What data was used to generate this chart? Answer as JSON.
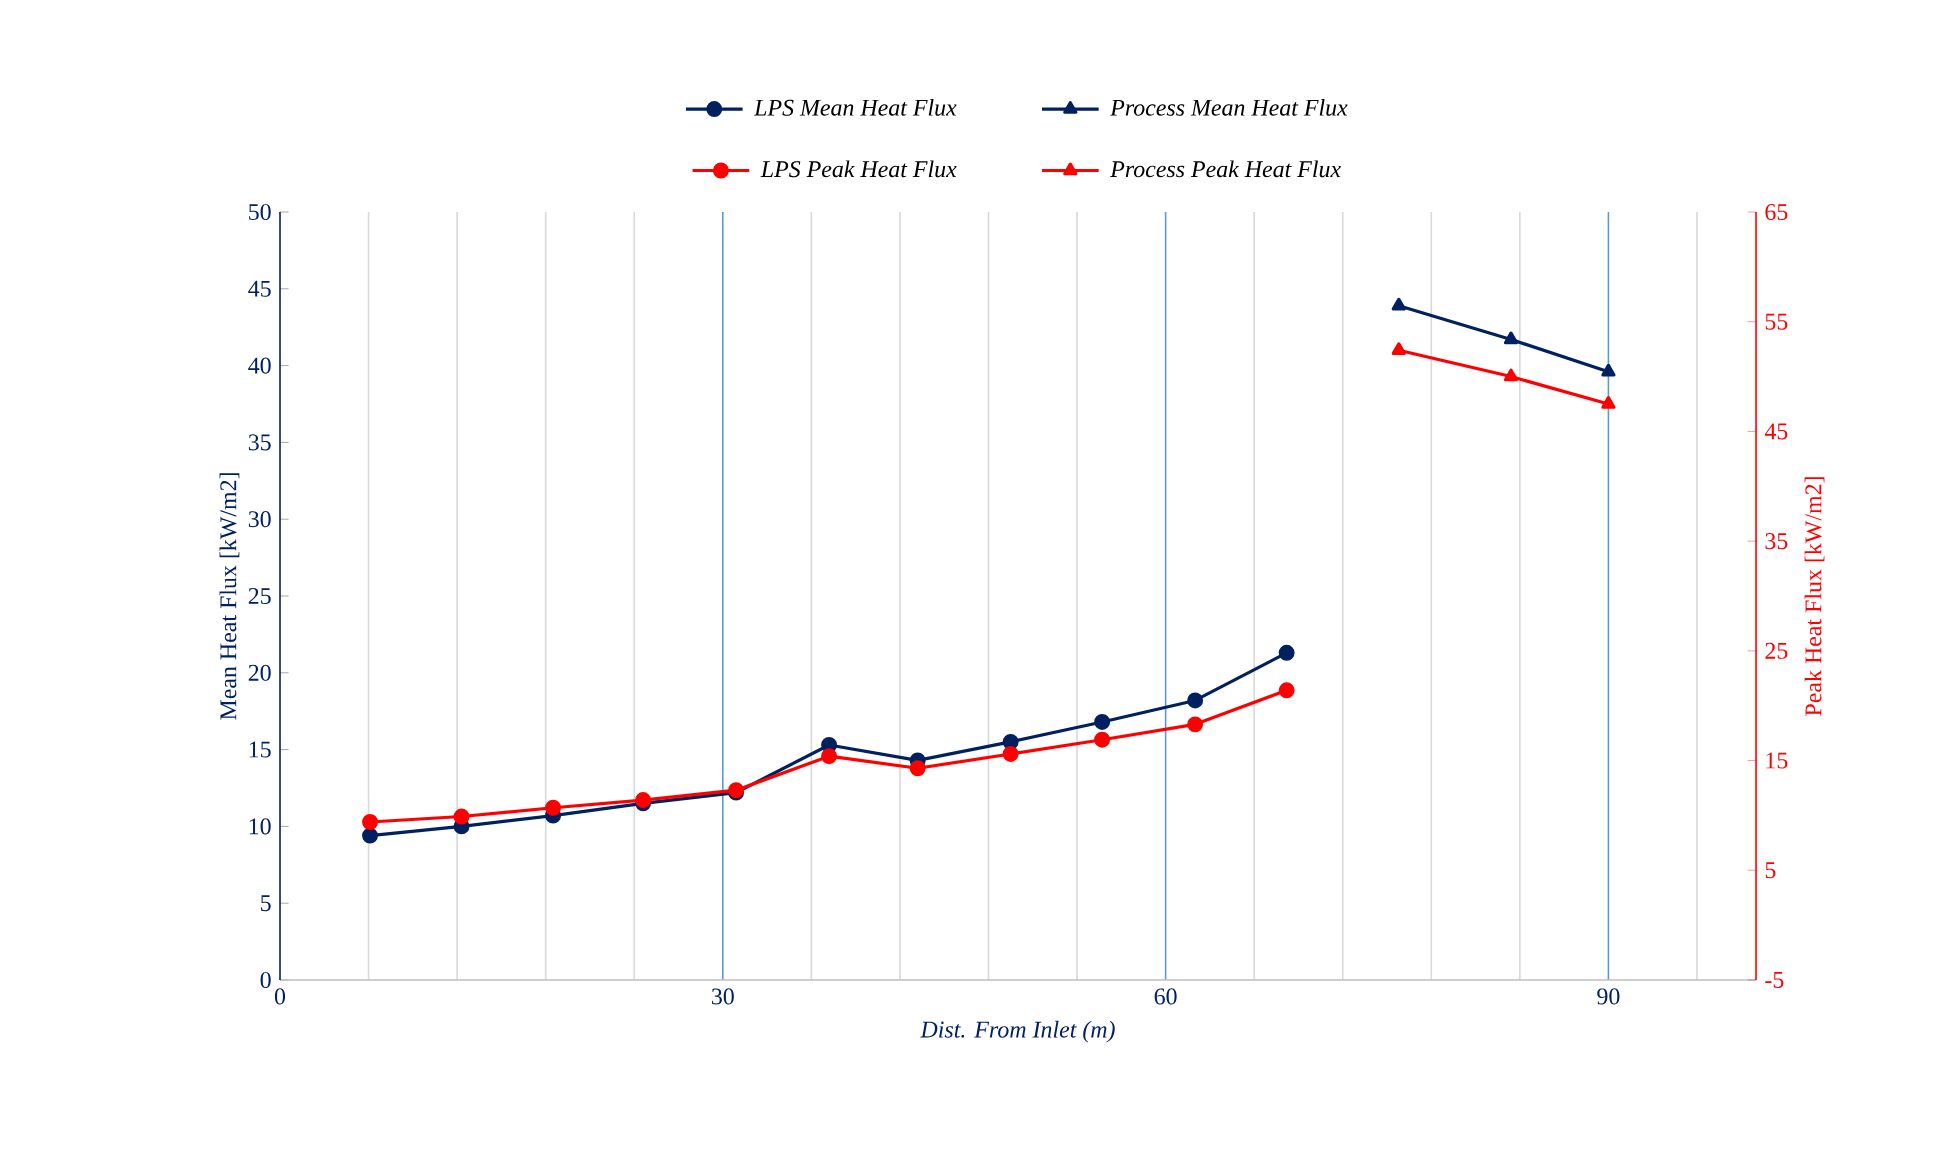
{
  "chart_data": {
    "type": "line",
    "xlabel": "Dist. From Inlet (m)",
    "ylabel": "Mean Heat Flux [kW/m2]",
    "y2label": "Peak Heat Flux [kW/m2]",
    "xlim": [
      0,
      100
    ],
    "ylim": [
      0,
      50
    ],
    "y2lim": [
      -5,
      65
    ],
    "xticks": [
      0,
      {
        "value": 6,
        "label": null
      },
      {
        "value": 12,
        "label": null
      },
      {
        "value": 18,
        "label": null
      },
      {
        "value": 24,
        "label": null
      },
      30,
      {
        "value": 36,
        "label": null
      },
      {
        "value": 42,
        "label": null
      },
      {
        "value": 48,
        "label": null
      },
      {
        "value": 54,
        "label": null
      },
      60,
      {
        "value": 66,
        "label": null
      },
      {
        "value": 72,
        "label": null
      },
      {
        "value": 78,
        "label": null
      },
      {
        "value": 84,
        "label": null
      },
      90,
      {
        "value": 96,
        "label": null
      }
    ],
    "yticks": [
      0,
      5,
      10,
      15,
      20,
      25,
      30,
      35,
      40,
      45,
      50
    ],
    "y2ticks": [
      -5,
      5,
      15,
      25,
      35,
      45,
      55,
      65
    ],
    "grid": "x",
    "legend": "top",
    "line_style": "solid",
    "series": [
      {
        "name": "LPS Mean Heat Flux",
        "color": "#002060",
        "marker": "circle",
        "x": [
          6.1,
          12.3,
          18.5,
          24.6,
          30.9,
          37.2,
          43.2,
          49.5,
          55.7,
          62.0,
          68.2
        ],
        "values": [
          9.4,
          10.0,
          10.7,
          11.5,
          12.2,
          15.3,
          14.3,
          15.5,
          16.8,
          18.2,
          21.3
        ]
      },
      {
        "name": "Process Mean Heat Flux",
        "color": "#002060",
        "marker": "triangle",
        "x": [
          75.8,
          83.4,
          90.0
        ],
        "values": [
          43.9,
          41.7,
          39.6
        ]
      },
      {
        "name": "LPS Peak Heat Flux",
        "color": "#ff0000",
        "marker": "circle",
        "axis": "y2",
        "x": [
          6.1,
          12.3,
          18.5,
          24.6,
          30.9,
          37.2,
          43.2,
          49.5,
          55.7,
          62.0,
          68.2
        ],
        "values": [
          9.4,
          9.9,
          10.7,
          11.4,
          12.3,
          15.4,
          14.3,
          15.6,
          16.9,
          18.3,
          21.4
        ]
      },
      {
        "name": "Process Peak Heat Flux",
        "color": "#ff0000",
        "marker": "triangle",
        "axis": "y2",
        "x": [
          75.8,
          83.4,
          90.0
        ],
        "values": [
          52.4,
          50.0,
          47.5
        ]
      }
    ]
  }
}
